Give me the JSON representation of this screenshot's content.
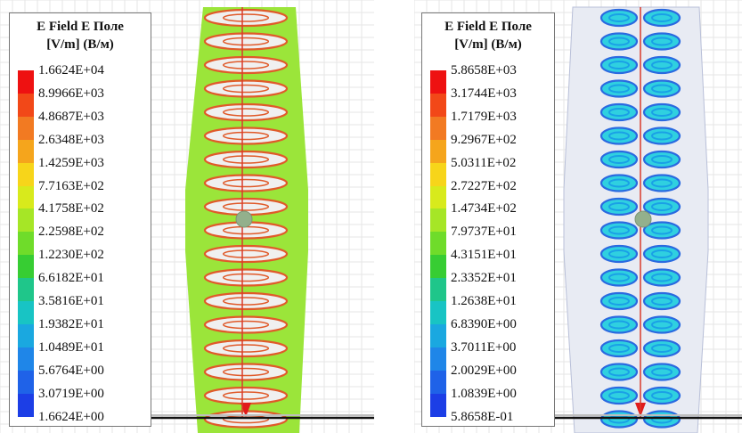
{
  "left_panel": {
    "legend": {
      "title_line1": "E Field E Поле",
      "title_line2": "[V/m] (В/м)",
      "labels": [
        "1.6624E+04",
        "8.9966E+03",
        "4.8687E+03",
        "2.6348E+03",
        "1.4259E+03",
        "7.7163E+02",
        "4.1758E+02",
        "2.2598E+02",
        "1.2230E+02",
        "6.6182E+01",
        "3.5816E+01",
        "1.9382E+01",
        "1.0489E+01",
        "5.6764E+00",
        "3.0719E+00",
        "1.6624E+00"
      ]
    },
    "plot": {
      "background": "#9be53a",
      "contour_color": "#e05a2a",
      "inner_color": "#f0f0f0",
      "hotspot_color": "#e11b1b"
    }
  },
  "right_panel": {
    "legend": {
      "title_line1": "E Field E Поле",
      "title_line2": "[V/m] (В/м)",
      "labels": [
        "5.8658E+03",
        "3.1744E+03",
        "1.7179E+03",
        "9.2967E+02",
        "5.0311E+02",
        "2.7227E+02",
        "1.4734E+02",
        "7.9737E+01",
        "4.3151E+01",
        "2.3352E+01",
        "1.2638E+01",
        "6.8390E+00",
        "3.7011E+00",
        "2.0029E+00",
        "1.0839E+00",
        "5.8658E-01"
      ]
    },
    "plot": {
      "background": "#e8ebf3",
      "contour_color": "#2a6ae0",
      "inner_color": "#2fd0e0",
      "hotspot_color": "#e11b1b"
    }
  },
  "colorbar_colors": [
    "#ee1111",
    "#f24818",
    "#f27a22",
    "#f5a51c",
    "#f7d51a",
    "#d8ea1c",
    "#a6e626",
    "#6fdc2a",
    "#37cd33",
    "#1fc68a",
    "#18c4c4",
    "#1aa8e0",
    "#1f86e8",
    "#1f62e8",
    "#1c3ee6",
    "#1010ee"
  ]
}
